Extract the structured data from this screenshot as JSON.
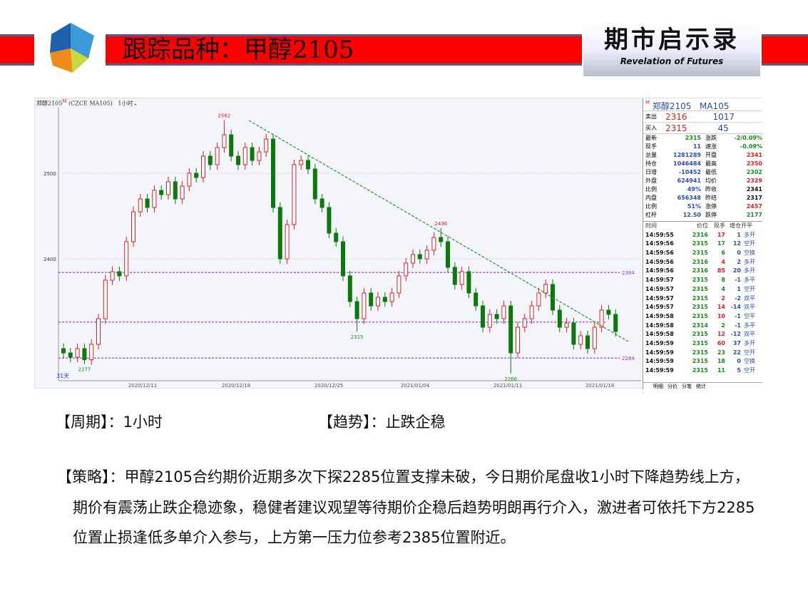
{
  "header": {
    "title": "跟踪品种：甲醇2105",
    "brand_cn": "期市启示录",
    "brand_en": "Revelation of Futures",
    "accent": "#ff0000"
  },
  "chart": {
    "symbol": "郑醇2105",
    "symbol_mark": "M",
    "code": "(CZCE MA105)",
    "period": "1小时",
    "range_label": "31天"
  },
  "chart_data": {
    "type": "candlestick",
    "y_ticks": [
      2500,
      2400
    ],
    "x_ticks": [
      "2020/12/11",
      "2020/12/18",
      "2020/12/25",
      "2021/01/04",
      "2021/01/11",
      "2021/01/18"
    ],
    "close": [
      2290,
      2285,
      2295,
      2282,
      2300,
      2330,
      2375,
      2385,
      2380,
      2420,
      2455,
      2470,
      2460,
      2480,
      2475,
      2490,
      2470,
      2485,
      2500,
      2495,
      2520,
      2510,
      2530,
      2545,
      2520,
      2510,
      2530,
      2515,
      2525,
      2540,
      2460,
      2400,
      2440,
      2510,
      2515,
      2505,
      2470,
      2460,
      2430,
      2420,
      2380,
      2350,
      2330,
      2360,
      2345,
      2355,
      2350,
      2360,
      2380,
      2395,
      2405,
      2400,
      2410,
      2425,
      2420,
      2390,
      2370,
      2385,
      2360,
      2345,
      2320,
      2335,
      2330,
      2345,
      2290,
      2320,
      2330,
      2345,
      2360,
      2370,
      2340,
      2320,
      2325,
      2300,
      2310,
      2295,
      2320,
      2340,
      2335,
      2315
    ],
    "annotations": [
      {
        "label": "2562",
        "index": 23,
        "value": 2562,
        "color": "#e02020"
      },
      {
        "label": "2277",
        "index": 3,
        "value": 2277,
        "color": "#1a8a1a"
      },
      {
        "label": "2315",
        "index": 42,
        "value": 2315,
        "color": "#1a8a1a"
      },
      {
        "label": "2436",
        "index": 54,
        "value": 2436,
        "color": "#e02020"
      },
      {
        "label": "2266",
        "index": 64,
        "value": 2266,
        "color": "#1a8a1a"
      }
    ],
    "hlines": [
      {
        "value": 2384,
        "label": "2384"
      },
      {
        "value": 2326,
        "label": ""
      },
      {
        "value": 2284,
        "label": "2284"
      }
    ],
    "trendline": {
      "from": [
        2555,
        "2020/12/21"
      ],
      "to": [
        2300,
        "2021/01/20"
      ]
    },
    "colors": {
      "up": "#e02020",
      "down": "#0a7a0a",
      "hline": "#9933cc",
      "trend": "#2a9a2a"
    }
  },
  "quote": {
    "title": "郑醇2105",
    "code": "MA105",
    "ask": {
      "label": "卖出",
      "price": "2316",
      "vol": "1017"
    },
    "bid": {
      "label": "买入",
      "price": "2315",
      "vol": "45"
    },
    "rows": [
      [
        "最新",
        "2315",
        "g",
        "涨跌",
        "-2/0.09%",
        "g"
      ],
      [
        "现手",
        "11",
        "b",
        "速涨",
        "-0.09%",
        "g"
      ],
      [
        "总量",
        "1281289",
        "b",
        "开盘",
        "2341",
        "r"
      ],
      [
        "持仓",
        "1046484",
        "b",
        "最高",
        "2350",
        "r"
      ],
      [
        "日增",
        "-10452",
        "b",
        "最低",
        "2302",
        "g"
      ],
      [
        "外盘",
        "624941",
        "b",
        "均价",
        "2329",
        "r"
      ],
      [
        "比例",
        "49%",
        "b",
        "昨收",
        "2341",
        "k"
      ],
      [
        "内盘",
        "656348",
        "b",
        "昨结",
        "2317",
        "k"
      ],
      [
        "比例",
        "51%",
        "b",
        "涨停",
        "2457",
        "r"
      ],
      [
        "杠杆",
        "12.50",
        "b",
        "跌停",
        "2177",
        "g"
      ]
    ]
  },
  "trades": {
    "headers": [
      "时间",
      "价位",
      "现手",
      "增仓",
      "开平"
    ],
    "rows": [
      [
        "14:59:55",
        "2316",
        "17",
        "1",
        "多开",
        "r"
      ],
      [
        "14:59:56",
        "2315",
        "17",
        "12",
        "空开",
        "g"
      ],
      [
        "14:59:56",
        "2315",
        "6",
        "0",
        "空换",
        "g"
      ],
      [
        "14:59:56",
        "2316",
        "4",
        "2",
        "多开",
        "r"
      ],
      [
        "14:59:56",
        "2316",
        "85",
        "20",
        "多开",
        "r"
      ],
      [
        "14:59:57",
        "2315",
        "8",
        "-1",
        "多平",
        "g"
      ],
      [
        "14:59:57",
        "2315",
        "4",
        "1",
        "空开",
        "g"
      ],
      [
        "14:59:57",
        "2315",
        "2",
        "-2",
        "双平",
        "r"
      ],
      [
        "14:59:57",
        "2315",
        "14",
        "-14",
        "双平",
        "r"
      ],
      [
        "14:59:58",
        "2315",
        "10",
        "-1",
        "空平",
        "r"
      ],
      [
        "14:59:58",
        "2314",
        "2",
        "-1",
        "多平",
        "g"
      ],
      [
        "14:59:58",
        "2315",
        "12",
        "-12",
        "双平",
        "r"
      ],
      [
        "14:59:59",
        "2315",
        "60",
        "37",
        "多开",
        "r"
      ],
      [
        "14:59:59",
        "2315",
        "23",
        "22",
        "空开",
        "g"
      ],
      [
        "14:59:59",
        "2315",
        "18",
        "0",
        "空换",
        "g"
      ],
      [
        "14:59:59",
        "2315",
        "11",
        "5",
        "空开",
        "g"
      ]
    ],
    "tabs": [
      "明细",
      "分价",
      "分笔",
      "统计"
    ]
  },
  "info": {
    "period_label": "【周期】：",
    "period": "1小时",
    "trend_label": "【趋势】：",
    "trend": "止跌企稳"
  },
  "strategy": {
    "label": "【策略】：",
    "text": "甲醇2105合约期价近期多次下探2285位置支撑未破，今日期价尾盘收1小时下降趋势线上方，期价有震荡止跌企稳迹象，稳健者建议观望等待期价企稳后趋势明朗再行介入，激进者可依托下方2285位置止损逢低多单介入参与，上方第一压力位参考2385位置附近。"
  }
}
